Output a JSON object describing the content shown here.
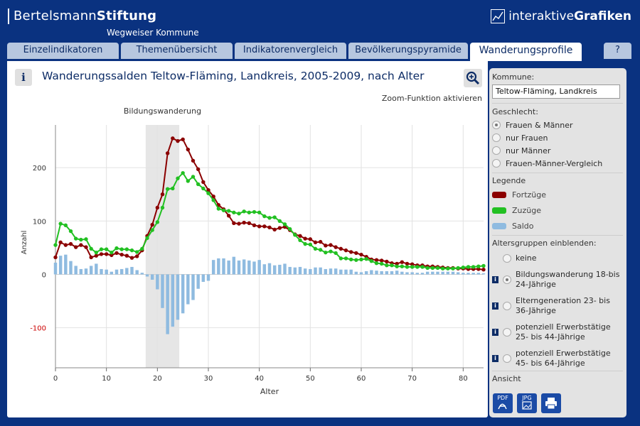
{
  "header": {
    "brand_light": "Bertelsmann",
    "brand_bold": "Stiftung",
    "subtitle": "Wegweiser Kommune",
    "igraf_light": "interaktive",
    "igraf_bold": "Grafiken"
  },
  "tabs": [
    "Einzelindikatoren",
    "Themenübersicht",
    "Indikatorenvergleich",
    "Bevölkerungspyramide",
    "Wanderungsprofile",
    "?"
  ],
  "main": {
    "info_label": "i",
    "title": "Wanderungssalden Teltow-Fläming, Landkreis, 2005-2009, nach Alter",
    "zoom_label": "Zoom-Funktion aktivieren"
  },
  "sidebar": {
    "kommune_label": "Kommune:",
    "kommune_value": "Teltow-Fläming, Landkreis",
    "geschlecht_label": "Geschlecht:",
    "geschlecht_options": [
      "Frauen & Männer",
      "nur Frauen",
      "nur Männer",
      "Frauen-Männer-Vergleich"
    ],
    "legende_label": "Legende",
    "legend": [
      {
        "label": "Fortzüge",
        "color": "#8b0000"
      },
      {
        "label": "Zuzüge",
        "color": "#22c022"
      },
      {
        "label": "Saldo",
        "color": "#8fbbe0"
      }
    ],
    "altersgruppen_label": "Altersgruppen einblenden:",
    "altersgruppen": [
      {
        "line1": "keine",
        "line2": ""
      },
      {
        "line1": "Bildungswanderung 18-bis",
        "line2": "24-Jährige"
      },
      {
        "line1": "Elterngeneration 23- bis",
        "line2": "36-Jährige"
      },
      {
        "line1": "potenziell Erwerbstätige",
        "line2": "25- bis 44-Jährige"
      },
      {
        "line1": "potenziell Erwerbstätige",
        "line2": "45- bis 64-Jährige"
      }
    ],
    "ansicht_label": "Ansicht",
    "exports": [
      "PDF",
      "JPG"
    ]
  },
  "chart_data": {
    "type": "line",
    "xlabel": "Alter",
    "ylabel": "Anzahl",
    "xlim": [
      0,
      84
    ],
    "ylim": [
      -175,
      280
    ],
    "xticks": [
      0,
      10,
      20,
      30,
      40,
      50,
      60,
      70,
      80
    ],
    "yticks": [
      -100,
      0,
      100,
      200
    ],
    "highlight": {
      "label": "Bildungswanderung",
      "from": 17.7,
      "to": 24.3
    },
    "x": [
      0,
      1,
      2,
      3,
      4,
      5,
      6,
      7,
      8,
      9,
      10,
      11,
      12,
      13,
      14,
      15,
      16,
      17,
      18,
      19,
      20,
      21,
      22,
      23,
      24,
      25,
      26,
      27,
      28,
      29,
      30,
      31,
      32,
      33,
      34,
      35,
      36,
      37,
      38,
      39,
      40,
      41,
      42,
      43,
      44,
      45,
      46,
      47,
      48,
      49,
      50,
      51,
      52,
      53,
      54,
      55,
      56,
      57,
      58,
      59,
      60,
      61,
      62,
      63,
      64,
      65,
      66,
      67,
      68,
      69,
      70,
      71,
      72,
      73,
      74,
      75,
      76,
      77,
      78,
      79,
      80,
      81,
      82,
      83,
      84
    ],
    "series": [
      {
        "name": "Fortzüge",
        "kind": "line",
        "color": "#8b0000",
        "values": [
          32,
          60,
          55,
          57,
          51,
          55,
          51,
          32,
          35,
          38,
          38,
          36,
          40,
          37,
          35,
          31,
          34,
          45,
          72,
          93,
          125,
          150,
          227,
          255,
          250,
          253,
          234,
          213,
          197,
          173,
          158,
          146,
          130,
          122,
          110,
          96,
          95,
          97,
          96,
          92,
          90,
          90,
          88,
          84,
          87,
          89,
          83,
          75,
          72,
          67,
          66,
          60,
          61,
          54,
          55,
          51,
          48,
          45,
          42,
          40,
          37,
          33,
          28,
          27,
          26,
          24,
          21,
          20,
          23,
          20,
          19,
          17,
          17,
          15,
          15,
          14,
          13,
          12,
          12,
          11,
          11,
          10,
          10,
          10,
          9
        ]
      },
      {
        "name": "Zuzüge",
        "kind": "line",
        "color": "#22c022",
        "values": [
          55,
          95,
          92,
          81,
          67,
          65,
          66,
          48,
          41,
          47,
          47,
          41,
          49,
          47,
          47,
          45,
          42,
          48,
          68,
          83,
          98,
          125,
          160,
          161,
          180,
          190,
          175,
          183,
          169,
          161,
          152,
          139,
          123,
          120,
          119,
          116,
          114,
          118,
          116,
          117,
          116,
          109,
          106,
          107,
          100,
          94,
          85,
          74,
          64,
          57,
          56,
          48,
          46,
          41,
          43,
          40,
          30,
          30,
          28,
          27,
          28,
          29,
          25,
          21,
          20,
          17,
          17,
          15,
          15,
          14,
          14,
          14,
          14,
          12,
          12,
          12,
          11,
          11,
          11,
          12,
          13,
          14,
          14,
          15,
          16
        ]
      },
      {
        "name": "Saldo",
        "kind": "bar",
        "color": "#8fbbe0",
        "values": [
          22,
          35,
          37,
          25,
          16,
          10,
          11,
          16,
          20,
          10,
          9,
          5,
          9,
          10,
          12,
          14,
          8,
          3,
          -4,
          -10,
          -28,
          -63,
          -112,
          -98,
          -85,
          -73,
          -56,
          -48,
          -27,
          -14,
          -12,
          27,
          30,
          30,
          26,
          33,
          26,
          28,
          26,
          24,
          27,
          19,
          21,
          17,
          18,
          20,
          14,
          13,
          14,
          11,
          10,
          13,
          13,
          10,
          11,
          11,
          9,
          9,
          9,
          5,
          4,
          6,
          8,
          7,
          6,
          6,
          6,
          7,
          5,
          4,
          4,
          3,
          3,
          5,
          5,
          5,
          5,
          5,
          5,
          4,
          3,
          3,
          3,
          3,
          2
        ]
      }
    ]
  }
}
